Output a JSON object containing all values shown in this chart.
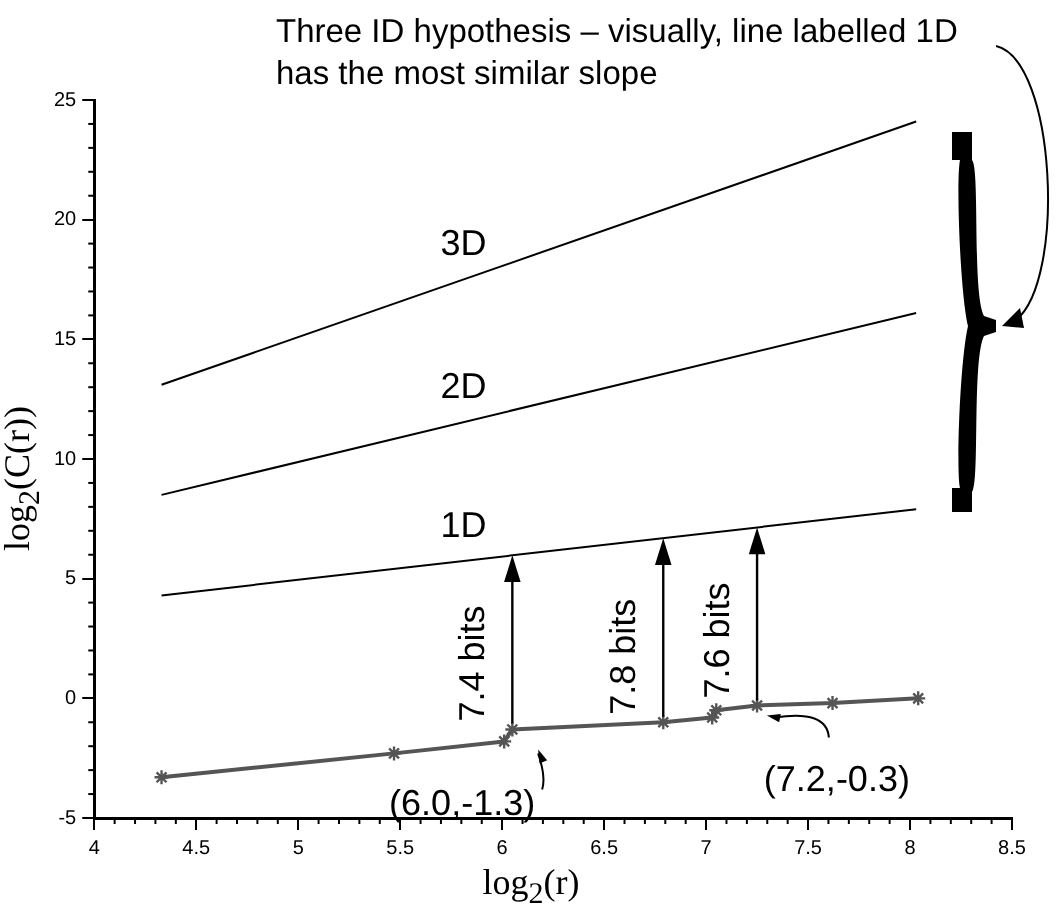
{
  "chart_data": {
    "type": "line",
    "xlabel": "log$_{2}$(r)",
    "ylabel": "log$_{2}$(C(r))",
    "xlim": [
      4,
      8.5
    ],
    "xticks": [
      4,
      4.5,
      5,
      5.5,
      6,
      6.5,
      7,
      7.5,
      8,
      8.5
    ],
    "ylim": [
      -5,
      25
    ],
    "yticks": [
      -5,
      0,
      5,
      10,
      15,
      20,
      25
    ],
    "grid": false,
    "legend": false,
    "marker": "none",
    "line_style": "solid",
    "series": [
      {
        "name": "3D",
        "color": "#000000",
        "x": [
          4.33,
          8.03
        ],
        "values": [
          13.1,
          24.1
        ]
      },
      {
        "name": "2D",
        "color": "#000000",
        "x": [
          4.33,
          8.03
        ],
        "values": [
          8.5,
          16.1
        ]
      },
      {
        "name": "1D",
        "color": "#000000",
        "x": [
          4.33,
          8.03
        ],
        "values": [
          4.3,
          7.9
        ]
      },
      {
        "color": "#555555",
        "marker": "cross",
        "x": [
          4.33,
          5.47,
          6.01,
          6.05,
          6.79,
          7.03,
          7.05,
          7.25,
          7.62,
          8.04
        ],
        "values": [
          -3.3,
          -2.3,
          -1.8,
          -1.3,
          -1.0,
          -0.8,
          -0.5,
          -0.3,
          -0.2,
          0
        ]
      }
    ],
    "annotations": [
      "Three ID hypothesis – visually, line labelled 1D has the most similar slope",
      {
        "text": "7.4 bits",
        "x": 6.05,
        "y": -1.3
      },
      {
        "text": "7.8 bits",
        "x": 6.79,
        "y": -1.02
      },
      {
        "text": "7.6 bits",
        "x": 7.25,
        "y": -0.34
      },
      {
        "text": "(6.0,-1.3)",
        "x": 6.0,
        "y": -1.3
      },
      {
        "text": "(7.2,-0.3)",
        "x": 7.2,
        "y": -0.3
      }
    ]
  }
}
